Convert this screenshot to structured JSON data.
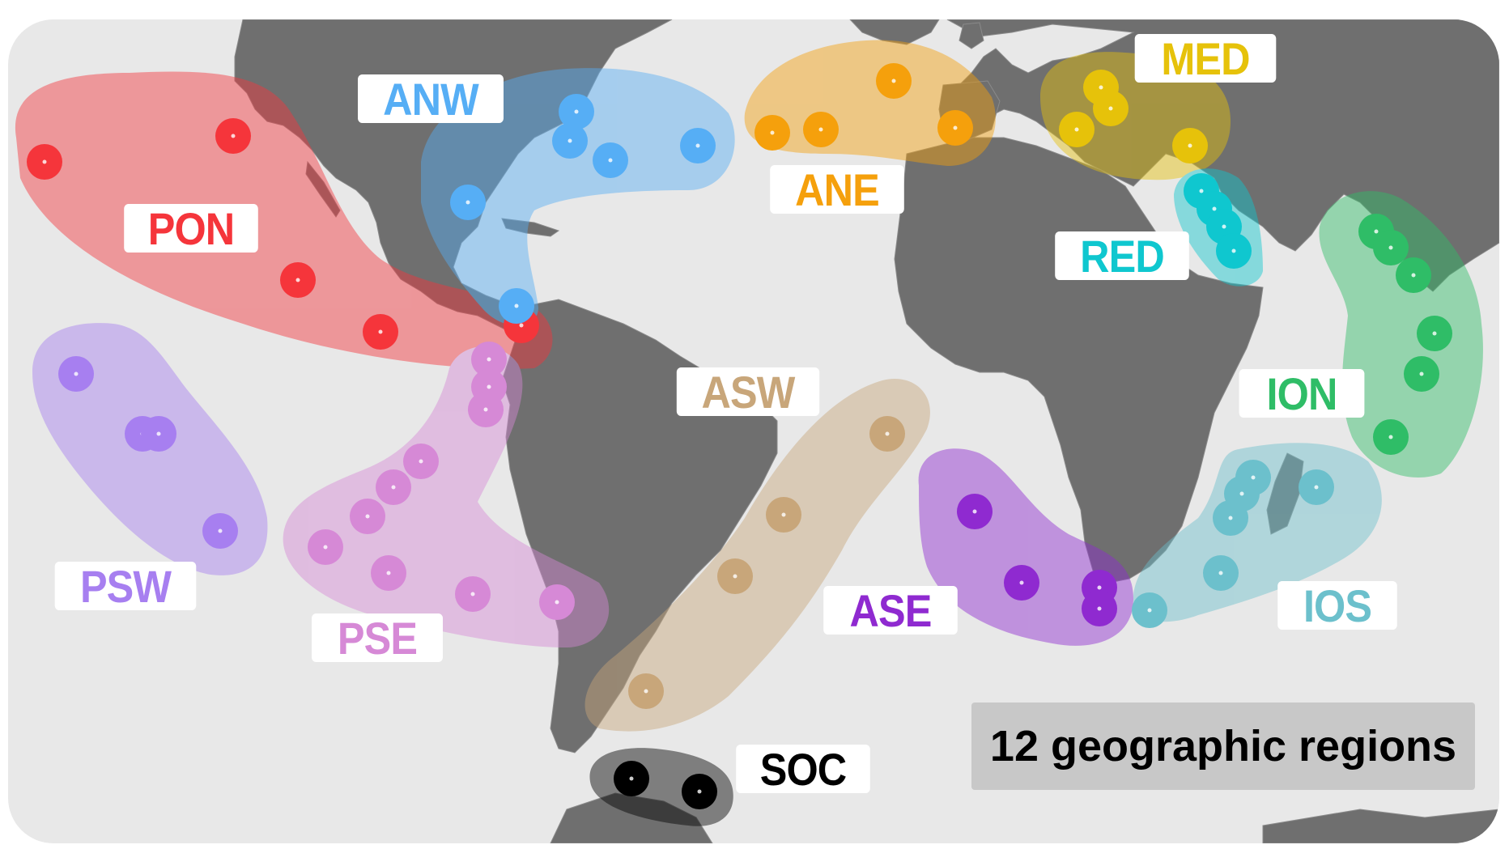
{
  "summary": "12 geographic regions",
  "colors": {
    "ocean": "#e8e8e8",
    "land": "#6f6f6f",
    "PON": "#f5353b",
    "ANW": "#56aef5",
    "ANE": "#f5a00c",
    "MED": "#e6c20a",
    "RED": "#0fc7cf",
    "ION": "#2fbd67",
    "IOS": "#6cc0cc",
    "ASE": "#8f2ad0",
    "ASW": "#c8a67a",
    "PSE": "#d689d6",
    "PSW": "#a77ff0",
    "SOC": "#000000"
  },
  "regions": [
    {
      "code": "PON",
      "text_color": "#f5353b"
    },
    {
      "code": "ANW",
      "text_color": "#56aef5"
    },
    {
      "code": "ANE",
      "text_color": "#f5a00c"
    },
    {
      "code": "MED",
      "text_color": "#e6c20a"
    },
    {
      "code": "RED",
      "text_color": "#0fc7cf"
    },
    {
      "code": "ION",
      "text_color": "#2fbd67"
    },
    {
      "code": "IOS",
      "text_color": "#6cc0cc"
    },
    {
      "code": "ASE",
      "text_color": "#8f2ad0"
    },
    {
      "code": "ASW",
      "text_color": "#c8a67a"
    },
    {
      "code": "PSE",
      "text_color": "#d689d6"
    },
    {
      "code": "PSW",
      "text_color": "#a77ff0"
    },
    {
      "code": "SOC",
      "text_color": "#000000"
    }
  ]
}
